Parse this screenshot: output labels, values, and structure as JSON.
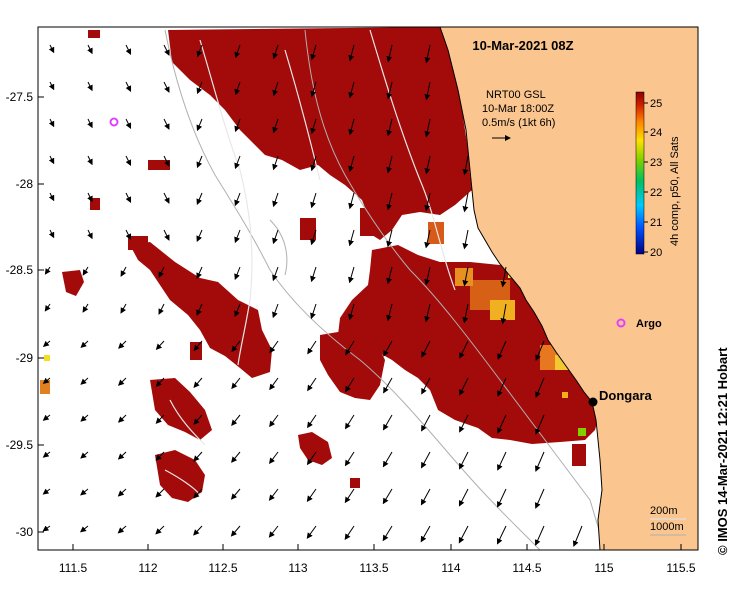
{
  "title": "10-Mar-2021 08Z",
  "legend_vector": {
    "line1": "NRT00 GSL",
    "line2": "10-Mar 18:00Z",
    "line3": "0.5m/s (1kt 6h)"
  },
  "colorbar": {
    "label": "4h comp, p50, All Sats",
    "ticks": [
      "25",
      "24",
      "23",
      "22",
      "21",
      "20"
    ],
    "min": 20,
    "max": 25.5
  },
  "places": {
    "dongara": "Dongara",
    "argo": "Argo"
  },
  "depth_legend": {
    "line1": "200m",
    "line2": "1000m"
  },
  "credit": "© IMOS 14-Mar-2021 12:21 Hobart",
  "axes": {
    "x_ticks": [
      "111.5",
      "112",
      "112.5",
      "113",
      "113.5",
      "114",
      "114.5",
      "115",
      "115.5"
    ],
    "y_ticks": [
      "-27.5",
      "-28",
      "-28.5",
      "-29",
      "-29.5",
      "-30"
    ]
  },
  "colors": {
    "land": "#fac58e",
    "warm_water": "#a30a0a",
    "argo_marker": "#e040ff"
  }
}
